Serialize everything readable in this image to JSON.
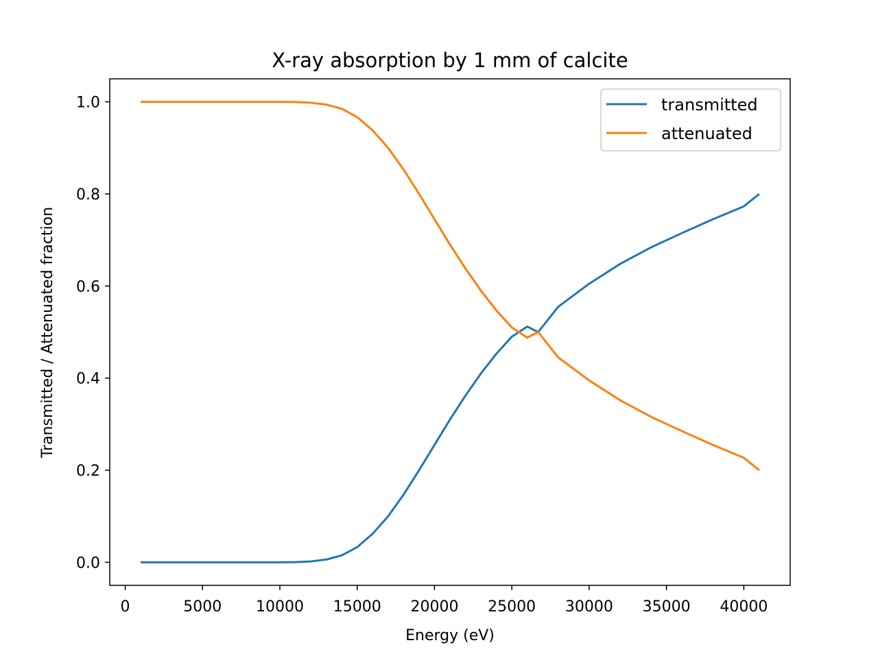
{
  "chart_data": {
    "type": "line",
    "title": "X-ray absorption by 1 mm of calcite",
    "xlabel": "Energy (eV)",
    "ylabel": "Transmitted / Attenuated fraction",
    "xlim": [
      -1000,
      43000
    ],
    "ylim": [
      -0.05,
      1.05
    ],
    "xticks": [
      0,
      5000,
      10000,
      15000,
      20000,
      25000,
      30000,
      35000,
      40000
    ],
    "xtick_labels": [
      "0",
      "5000",
      "10000",
      "15000",
      "20000",
      "25000",
      "30000",
      "35000",
      "40000"
    ],
    "yticks": [
      0.0,
      0.2,
      0.4,
      0.6,
      0.8,
      1.0
    ],
    "ytick_labels": [
      "0.0",
      "0.2",
      "0.4",
      "0.6",
      "0.8",
      "1.0"
    ],
    "legend_position": "top-right",
    "grid": false,
    "x": [
      1000,
      4000,
      7000,
      10000,
      11000,
      12000,
      13000,
      14000,
      15000,
      16000,
      17000,
      18000,
      19000,
      20000,
      21000,
      22000,
      23000,
      24000,
      25000,
      26000,
      26700,
      28000,
      30000,
      32000,
      34000,
      36000,
      38000,
      40000,
      41000
    ],
    "series": [
      {
        "name": "transmitted",
        "color": "#1f77b4",
        "values": [
          0.0,
          0.0,
          0.0,
          0.0,
          0.0005,
          0.002,
          0.006,
          0.015,
          0.033,
          0.062,
          0.1,
          0.147,
          0.2,
          0.255,
          0.31,
          0.362,
          0.41,
          0.453,
          0.49,
          0.512,
          0.5,
          0.555,
          0.605,
          0.648,
          0.684,
          0.715,
          0.745,
          0.773,
          0.8
        ]
      },
      {
        "name": "attenuated",
        "color": "#ff7f0e",
        "values": [
          1.0,
          1.0,
          1.0,
          1.0,
          0.9995,
          0.998,
          0.994,
          0.985,
          0.967,
          0.938,
          0.9,
          0.853,
          0.8,
          0.745,
          0.69,
          0.638,
          0.59,
          0.547,
          0.51,
          0.488,
          0.5,
          0.445,
          0.395,
          0.352,
          0.316,
          0.285,
          0.255,
          0.227,
          0.2
        ]
      }
    ]
  }
}
